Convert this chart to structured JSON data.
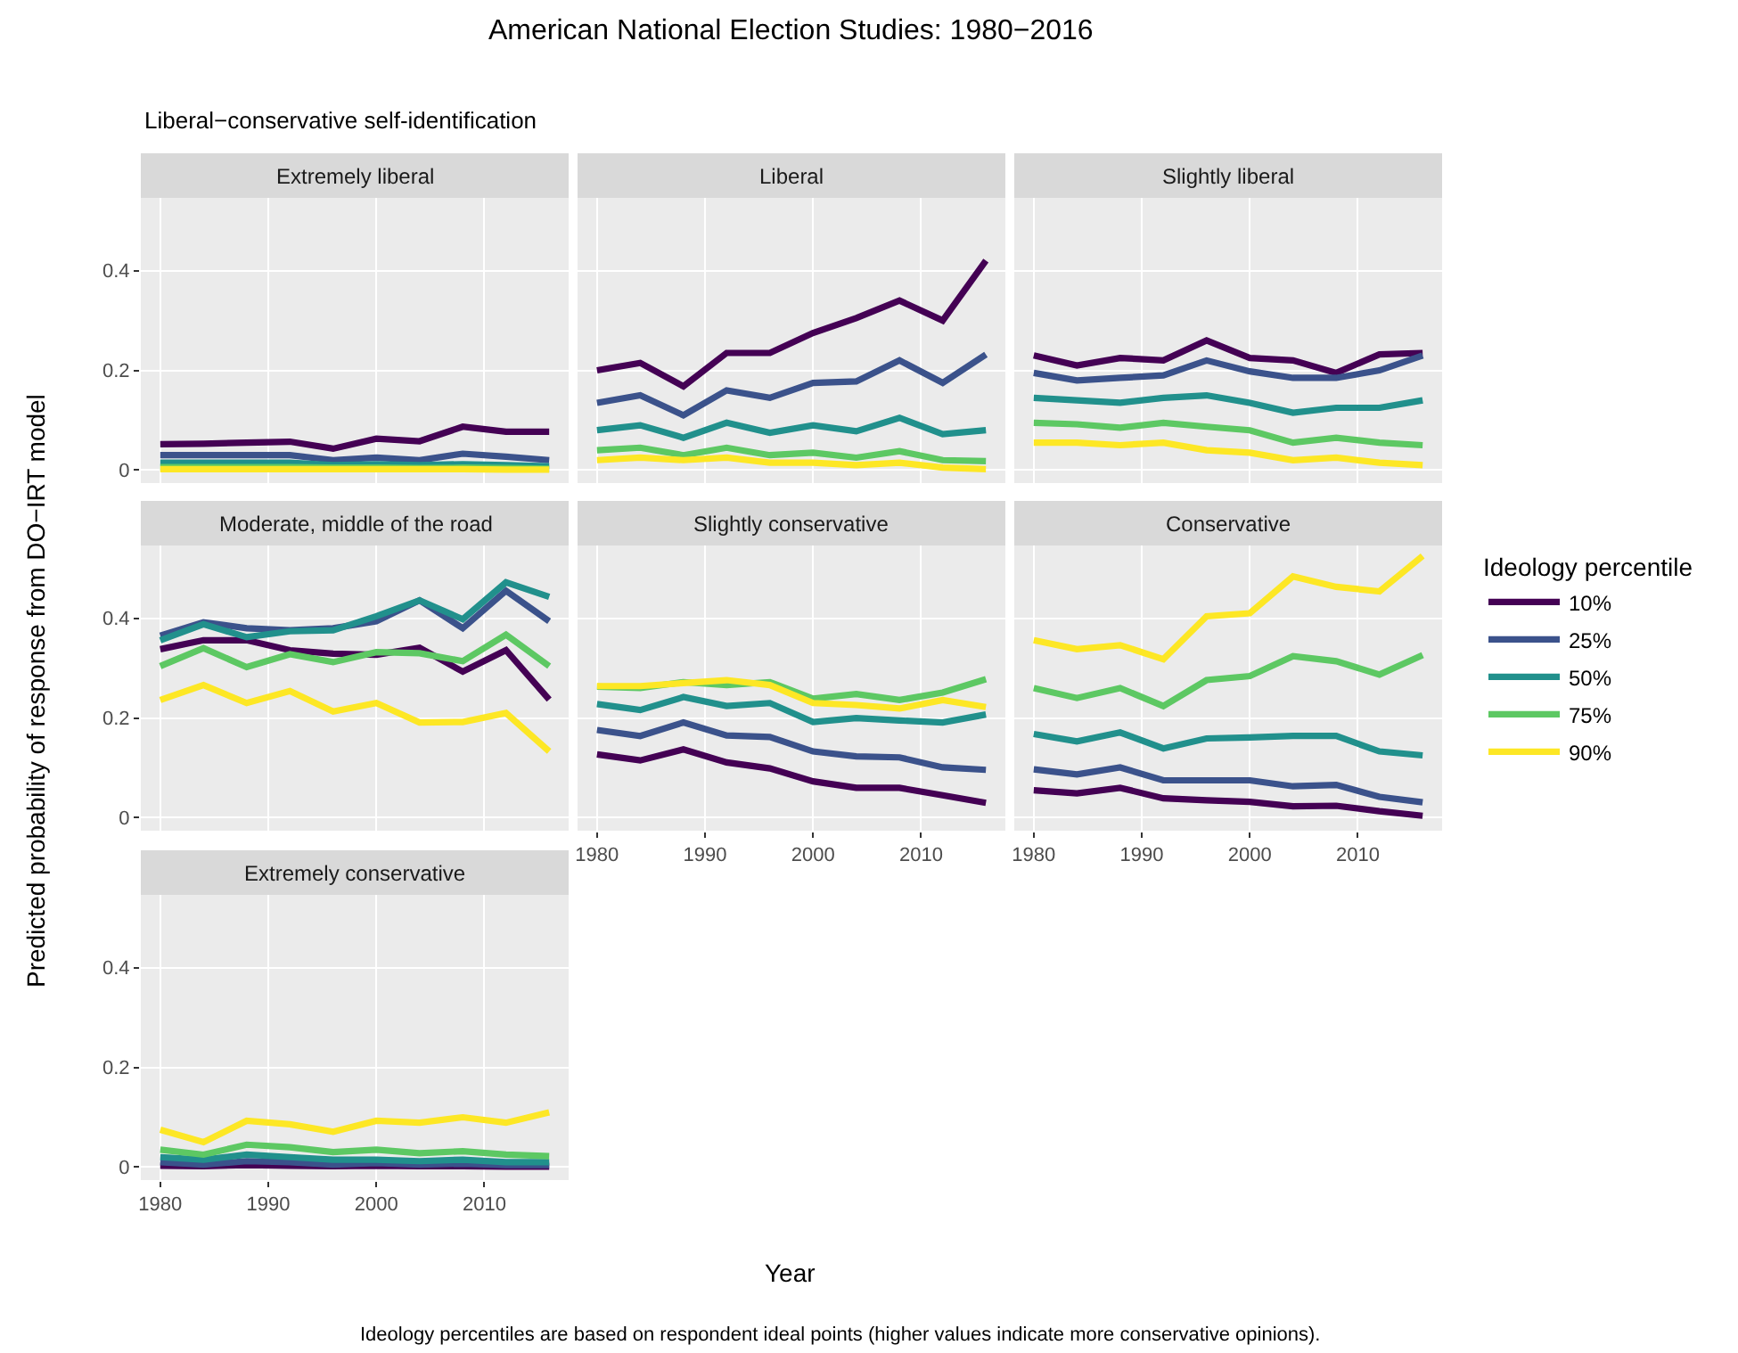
{
  "chart_data": [
    {
      "type": "other",
      "title": "American National Election Studies: 1980−2016",
      "subtitle": "Liberal−conservative self-identification",
      "xlabel": "Year",
      "ylabel": "Predicted probability of response from DO−IRT model",
      "annotations": [
        "Ideology percentiles are based on respondent ideal points (higher values indicate more conservative opinions)."
      ]
    },
    {
      "type": "line",
      "title": "Extremely liberal",
      "x": [
        1980,
        1984,
        1988,
        1992,
        1996,
        2000,
        2004,
        2008,
        2012,
        2016
      ],
      "xlim": [
        1978.2,
        2017.8
      ],
      "ylim": [
        -0.026,
        0.546
      ],
      "xticks": [
        1980,
        1990,
        2000,
        2010
      ],
      "yticks": [
        0,
        0.2,
        0.4
      ],
      "grid": true,
      "legend": "right",
      "tick_labels": "y",
      "line_style": "solid",
      "legend_title": "Ideology percentile",
      "series": [
        {
          "name": "10%",
          "color": "#440154",
          "values": [
            0.052,
            0.053,
            0.055,
            0.057,
            0.043,
            0.063,
            0.058,
            0.087,
            0.077,
            0.077
          ]
        },
        {
          "name": "25%",
          "color": "#3b528b",
          "values": [
            0.03,
            0.03,
            0.03,
            0.03,
            0.02,
            0.025,
            0.02,
            0.033,
            0.027,
            0.02
          ]
        },
        {
          "name": "50%",
          "color": "#21908c",
          "values": [
            0.015,
            0.015,
            0.015,
            0.015,
            0.01,
            0.012,
            0.01,
            0.012,
            0.01,
            0.008
          ]
        },
        {
          "name": "75%",
          "color": "#5dc863",
          "values": [
            0.006,
            0.006,
            0.006,
            0.006,
            0.005,
            0.005,
            0.004,
            0.005,
            0.004,
            0.003
          ]
        },
        {
          "name": "90%",
          "color": "#fde725",
          "values": [
            0.002,
            0.002,
            0.002,
            0.002,
            0.002,
            0.002,
            0.002,
            0.002,
            0.001,
            0.001
          ]
        }
      ]
    },
    {
      "type": "line",
      "title": "Liberal",
      "x": [
        1980,
        1984,
        1988,
        1992,
        1996,
        2000,
        2004,
        2008,
        2012,
        2016
      ],
      "xlim": [
        1978.2,
        2017.8
      ],
      "ylim": [
        -0.026,
        0.546
      ],
      "xticks": [
        1980,
        1990,
        2000,
        2010
      ],
      "yticks": [
        0,
        0.2,
        0.4
      ],
      "grid": true,
      "tick_labels": false,
      "line_style": "solid",
      "series": [
        {
          "color": "#440154",
          "values": [
            0.2,
            0.215,
            0.168,
            0.235,
            0.235,
            0.275,
            0.305,
            0.34,
            0.3,
            0.42
          ]
        },
        {
          "color": "#3b528b",
          "values": [
            0.135,
            0.15,
            0.11,
            0.16,
            0.145,
            0.175,
            0.178,
            0.22,
            0.175,
            0.232
          ]
        },
        {
          "color": "#21908c",
          "values": [
            0.08,
            0.09,
            0.065,
            0.095,
            0.075,
            0.09,
            0.078,
            0.105,
            0.072,
            0.08
          ]
        },
        {
          "color": "#5dc863",
          "values": [
            0.04,
            0.045,
            0.03,
            0.045,
            0.03,
            0.035,
            0.025,
            0.038,
            0.02,
            0.018
          ]
        },
        {
          "color": "#fde725",
          "values": [
            0.02,
            0.025,
            0.02,
            0.025,
            0.015,
            0.015,
            0.01,
            0.015,
            0.005,
            0.002
          ]
        }
      ]
    },
    {
      "type": "line",
      "title": "Slightly liberal",
      "x": [
        1980,
        1984,
        1988,
        1992,
        1996,
        2000,
        2004,
        2008,
        2012,
        2016
      ],
      "xlim": [
        1978.2,
        2017.8
      ],
      "ylim": [
        -0.026,
        0.546
      ],
      "xticks": [
        1980,
        1990,
        2000,
        2010
      ],
      "yticks": [
        0,
        0.2,
        0.4
      ],
      "grid": true,
      "tick_labels": false,
      "line_style": "solid",
      "series": [
        {
          "color": "#440154",
          "values": [
            0.23,
            0.21,
            0.225,
            0.22,
            0.26,
            0.225,
            0.22,
            0.195,
            0.232,
            0.235
          ]
        },
        {
          "color": "#3b528b",
          "values": [
            0.195,
            0.18,
            0.185,
            0.19,
            0.22,
            0.198,
            0.185,
            0.185,
            0.2,
            0.23
          ]
        },
        {
          "color": "#21908c",
          "values": [
            0.145,
            0.14,
            0.135,
            0.145,
            0.15,
            0.135,
            0.115,
            0.125,
            0.125,
            0.14
          ]
        },
        {
          "color": "#5dc863",
          "values": [
            0.095,
            0.092,
            0.085,
            0.095,
            0.087,
            0.08,
            0.055,
            0.065,
            0.055,
            0.05
          ]
        },
        {
          "color": "#fde725",
          "values": [
            0.055,
            0.055,
            0.05,
            0.055,
            0.04,
            0.035,
            0.02,
            0.025,
            0.015,
            0.01
          ]
        }
      ]
    },
    {
      "type": "line",
      "title": "Moderate, middle of the road",
      "x": [
        1980,
        1984,
        1988,
        1992,
        1996,
        2000,
        2004,
        2008,
        2012,
        2016
      ],
      "xlim": [
        1978.2,
        2017.8
      ],
      "ylim": [
        -0.026,
        0.546
      ],
      "xticks": [
        1980,
        1990,
        2000,
        2010
      ],
      "yticks": [
        0,
        0.2,
        0.4
      ],
      "grid": true,
      "tick_labels": "y",
      "line_style": "solid",
      "series": [
        {
          "color": "#440154",
          "values": [
            0.338,
            0.356,
            0.356,
            0.336,
            0.329,
            0.327,
            0.341,
            0.293,
            0.336,
            0.237
          ]
        },
        {
          "color": "#3b528b",
          "values": [
            0.365,
            0.392,
            0.38,
            0.376,
            0.38,
            0.394,
            0.436,
            0.38,
            0.455,
            0.394
          ]
        },
        {
          "color": "#21908c",
          "values": [
            0.356,
            0.388,
            0.362,
            0.374,
            0.376,
            0.404,
            0.436,
            0.398,
            0.472,
            0.443
          ]
        },
        {
          "color": "#5dc863",
          "values": [
            0.304,
            0.34,
            0.302,
            0.328,
            0.312,
            0.332,
            0.33,
            0.314,
            0.367,
            0.304
          ]
        },
        {
          "color": "#fde725",
          "values": [
            0.236,
            0.266,
            0.23,
            0.254,
            0.213,
            0.23,
            0.191,
            0.192,
            0.21,
            0.133
          ]
        }
      ]
    },
    {
      "type": "line",
      "title": "Slightly conservative",
      "x": [
        1980,
        1984,
        1988,
        1992,
        1996,
        2000,
        2004,
        2008,
        2012,
        2016
      ],
      "xlim": [
        1978.2,
        2017.8
      ],
      "ylim": [
        -0.026,
        0.546
      ],
      "xticks": [
        1980,
        1990,
        2000,
        2010
      ],
      "yticks": [
        0,
        0.2,
        0.4
      ],
      "grid": true,
      "tick_labels": "x",
      "line_style": "solid",
      "series": [
        {
          "color": "#440154",
          "values": [
            0.127,
            0.115,
            0.137,
            0.111,
            0.099,
            0.073,
            0.06,
            0.06,
            0.045,
            0.03
          ]
        },
        {
          "color": "#3b528b",
          "values": [
            0.176,
            0.164,
            0.191,
            0.165,
            0.162,
            0.133,
            0.123,
            0.121,
            0.101,
            0.096
          ]
        },
        {
          "color": "#21908c",
          "values": [
            0.228,
            0.216,
            0.242,
            0.224,
            0.23,
            0.192,
            0.2,
            0.195,
            0.191,
            0.207
          ]
        },
        {
          "color": "#5dc863",
          "values": [
            0.263,
            0.26,
            0.272,
            0.266,
            0.272,
            0.239,
            0.248,
            0.236,
            0.251,
            0.278
          ]
        },
        {
          "color": "#fde725",
          "values": [
            0.264,
            0.264,
            0.27,
            0.276,
            0.266,
            0.23,
            0.226,
            0.219,
            0.236,
            0.222
          ]
        }
      ]
    },
    {
      "type": "line",
      "title": "Conservative",
      "x": [
        1980,
        1984,
        1988,
        1992,
        1996,
        2000,
        2004,
        2008,
        2012,
        2016
      ],
      "xlim": [
        1978.2,
        2017.8
      ],
      "ylim": [
        -0.026,
        0.546
      ],
      "xticks": [
        1980,
        1990,
        2000,
        2010
      ],
      "yticks": [
        0,
        0.2,
        0.4
      ],
      "grid": true,
      "tick_labels": "x",
      "line_style": "solid",
      "series": [
        {
          "color": "#440154",
          "values": [
            0.055,
            0.049,
            0.06,
            0.039,
            0.035,
            0.032,
            0.023,
            0.024,
            0.013,
            0.004
          ]
        },
        {
          "color": "#3b528b",
          "values": [
            0.097,
            0.087,
            0.101,
            0.075,
            0.075,
            0.075,
            0.063,
            0.066,
            0.042,
            0.031
          ]
        },
        {
          "color": "#21908c",
          "values": [
            0.168,
            0.153,
            0.171,
            0.139,
            0.159,
            0.161,
            0.164,
            0.164,
            0.133,
            0.125
          ]
        },
        {
          "color": "#5dc863",
          "values": [
            0.26,
            0.24,
            0.26,
            0.224,
            0.276,
            0.284,
            0.324,
            0.314,
            0.287,
            0.326
          ]
        },
        {
          "color": "#fde725",
          "values": [
            0.356,
            0.338,
            0.346,
            0.318,
            0.404,
            0.41,
            0.484,
            0.463,
            0.454,
            0.525
          ]
        }
      ]
    },
    {
      "type": "line",
      "title": "Extremely conservative",
      "x": [
        1980,
        1984,
        1988,
        1992,
        1996,
        2000,
        2004,
        2008,
        2012,
        2016
      ],
      "xlim": [
        1978.2,
        2017.8
      ],
      "ylim": [
        -0.026,
        0.546
      ],
      "xticks": [
        1980,
        1990,
        2000,
        2010
      ],
      "yticks": [
        0,
        0.2,
        0.4
      ],
      "grid": true,
      "line_style": "solid",
      "series": [
        {
          "color": "#440154",
          "values": [
            0.003,
            0.002,
            0.004,
            0.003,
            0.002,
            0.003,
            0.002,
            0.002,
            0.001,
            0.001
          ]
        },
        {
          "color": "#3b528b",
          "values": [
            0.01,
            0.005,
            0.012,
            0.01,
            0.005,
            0.008,
            0.005,
            0.007,
            0.004,
            0.004
          ]
        },
        {
          "color": "#21908c",
          "values": [
            0.02,
            0.015,
            0.025,
            0.02,
            0.015,
            0.015,
            0.012,
            0.015,
            0.01,
            0.01
          ]
        },
        {
          "color": "#5dc863",
          "values": [
            0.035,
            0.025,
            0.045,
            0.04,
            0.03,
            0.035,
            0.028,
            0.032,
            0.025,
            0.022
          ]
        },
        {
          "color": "#fde725",
          "values": [
            0.075,
            0.05,
            0.093,
            0.086,
            0.071,
            0.093,
            0.089,
            0.1,
            0.089,
            0.11
          ]
        }
      ]
    }
  ]
}
